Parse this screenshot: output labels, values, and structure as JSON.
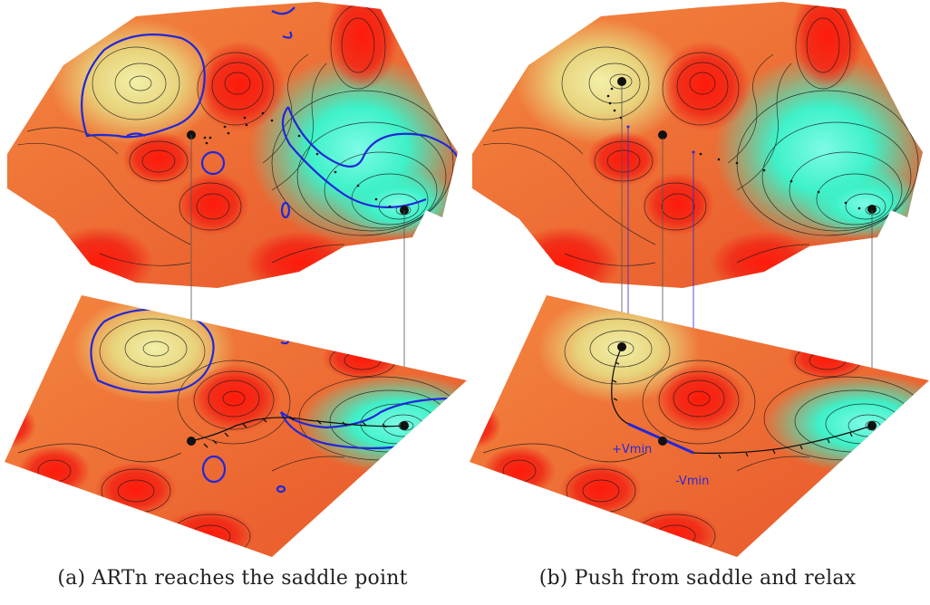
{
  "colors": {
    "high": "#ee1a0e",
    "mid": "#f0743c",
    "saddle_yellow": "#e8e08a",
    "low": "#3ff2cc",
    "contour": "#1a1a1a",
    "blue_path": "#1f28d8"
  },
  "panels": [
    {
      "caption": "(a) ARTn reaches the saddle point"
    },
    {
      "caption": "(b) Push from saddle and relax",
      "labels": {
        "plus": "+Vmin",
        "minus": "-Vmin"
      }
    }
  ]
}
